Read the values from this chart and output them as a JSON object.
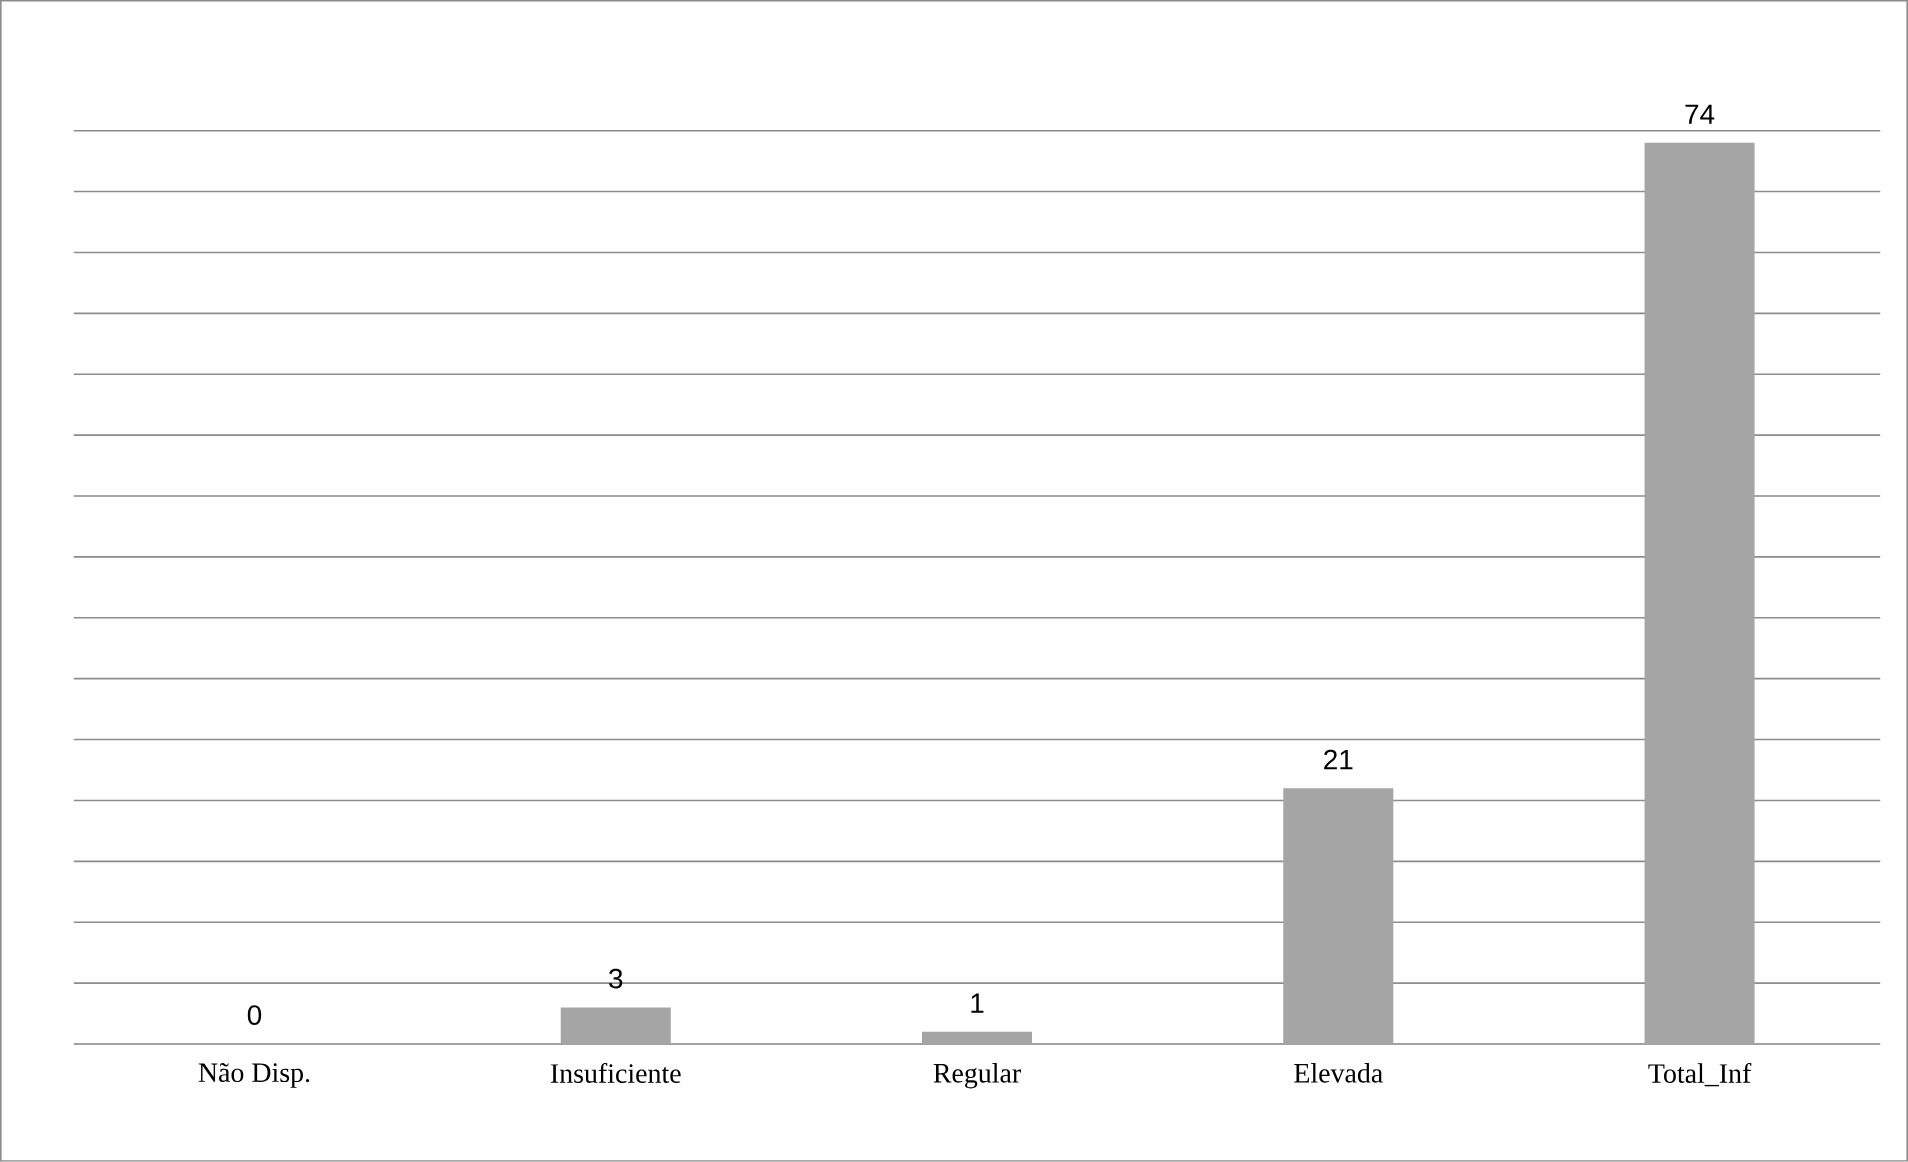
{
  "chart_data": {
    "type": "bar",
    "categories": [
      "Não Disp.",
      "Insuficiente",
      "Regular",
      "Elevada",
      "Total_Inf"
    ],
    "values": [
      0,
      3,
      1,
      21,
      74
    ],
    "color": "#a5a5a5",
    "grid": "y",
    "tick_labels": "x",
    "data_labels": true
  }
}
